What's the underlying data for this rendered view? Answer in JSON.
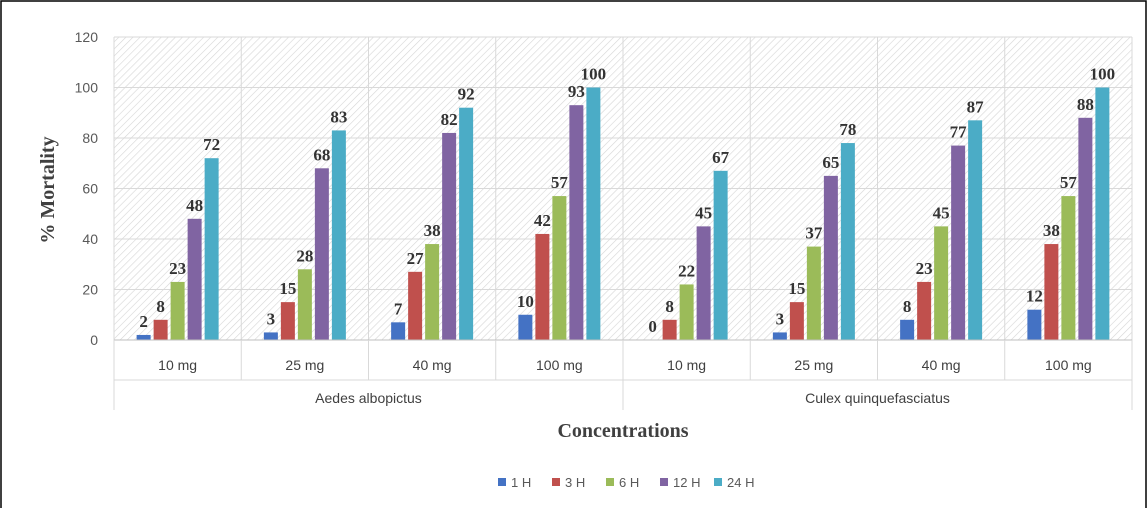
{
  "chart_data": {
    "type": "bar",
    "title": "",
    "xlabel": "Concentrations",
    "ylabel": "% Mortality",
    "ylim": [
      0,
      120
    ],
    "yticks": [
      0,
      20,
      40,
      60,
      80,
      100,
      120
    ],
    "grid": true,
    "legend_position": "bottom",
    "groups": [
      {
        "name": "Aedes albopictus",
        "categories": [
          "10 mg",
          "25 mg",
          "40 mg",
          "100 mg"
        ]
      },
      {
        "name": "Culex quinquefasciatus",
        "categories": [
          "10 mg",
          "25 mg",
          "40 mg",
          "100 mg"
        ]
      }
    ],
    "categories": [
      "10 mg",
      "25 mg",
      "40 mg",
      "100 mg",
      "10 mg",
      "25 mg",
      "40 mg",
      "100 mg"
    ],
    "series": [
      {
        "name": "1 H",
        "color": "#4472C4",
        "values": [
          2,
          3,
          7,
          10,
          0,
          3,
          8,
          12
        ]
      },
      {
        "name": "3 H",
        "color": "#C0504D",
        "values": [
          8,
          15,
          27,
          42,
          8,
          15,
          23,
          38
        ]
      },
      {
        "name": "6 H",
        "color": "#9BBB59",
        "values": [
          23,
          28,
          38,
          57,
          22,
          37,
          45,
          57
        ]
      },
      {
        "name": "12 H",
        "color": "#8064A2",
        "values": [
          48,
          68,
          82,
          93,
          45,
          65,
          77,
          88
        ]
      },
      {
        "name": "24 H",
        "color": "#4BACC6",
        "values": [
          72,
          83,
          92,
          100,
          67,
          78,
          87,
          100
        ]
      }
    ]
  }
}
